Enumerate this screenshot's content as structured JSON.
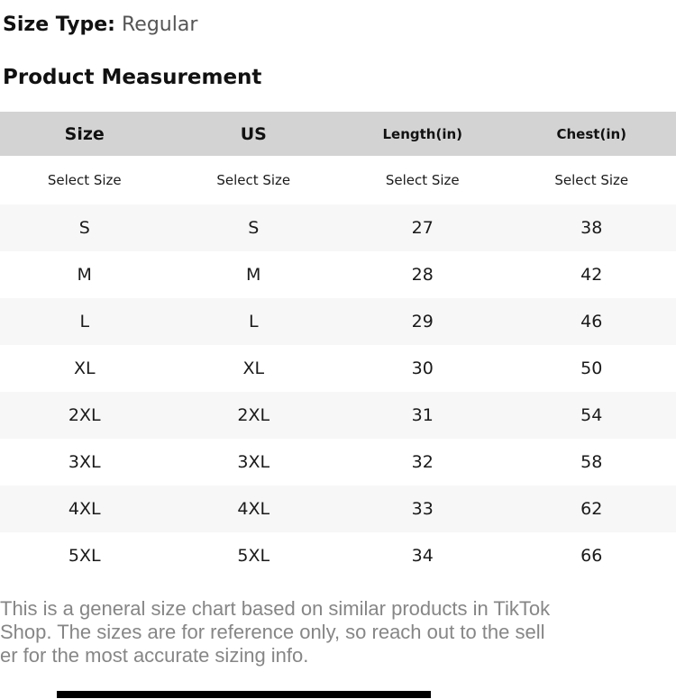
{
  "header": {
    "size_type_label": "Size Type:",
    "size_type_value": "Regular",
    "section_title": "Product Measurement"
  },
  "table": {
    "columns": [
      "Size",
      "US",
      "Length(in)",
      "Chest(in)"
    ],
    "select_row": [
      "Select Size",
      "Select Size",
      "Select Size",
      "Select Size"
    ],
    "rows": [
      [
        "S",
        "S",
        "27",
        "38"
      ],
      [
        "M",
        "M",
        "28",
        "42"
      ],
      [
        "L",
        "L",
        "29",
        "46"
      ],
      [
        "XL",
        "XL",
        "30",
        "50"
      ],
      [
        "2XL",
        "2XL",
        "31",
        "54"
      ],
      [
        "3XL",
        "3XL",
        "32",
        "58"
      ],
      [
        "4XL",
        "4XL",
        "33",
        "62"
      ],
      [
        "5XL",
        "5XL",
        "34",
        "66"
      ]
    ]
  },
  "footer": {
    "note_lines": [
      "This is a general size chart based on similar products in TikTok",
      "Shop. The sizes are for reference only, so reach out to the sell",
      "er for the most accurate sizing info."
    ]
  },
  "colors": {
    "header_bg": "#d3d3d3",
    "row_alt_bg": "#f7f7f7",
    "text_primary": "#1a1a1a",
    "text_secondary": "#555555",
    "footer_text": "#868686",
    "bottom_bar": "#000000"
  }
}
